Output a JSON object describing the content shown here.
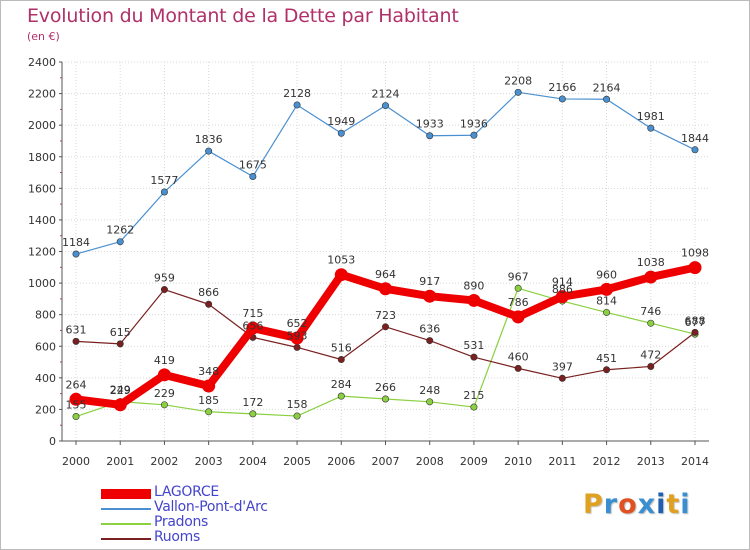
{
  "header": {
    "title": "Evolution du Montant de la Dette par Habitant",
    "subtitle": "(en €)"
  },
  "logo": {
    "letters": [
      "P",
      "r",
      "o",
      "x",
      "i",
      "t",
      "i"
    ],
    "colors": [
      "#e0a020",
      "#3a8fd0",
      "#e05020",
      "#3a8fd0",
      "#2060b0",
      "#e0a020",
      "#3a8fd0"
    ]
  },
  "chart_data": {
    "type": "line",
    "title": "Evolution du Montant de la Dette par Habitant",
    "subtitle": "(en €)",
    "xlabel": "",
    "ylabel": "",
    "ylim": [
      0,
      2400
    ],
    "grid": true,
    "legend_position": "bottom-left",
    "categories": [
      "2000",
      "2001",
      "2002",
      "2003",
      "2004",
      "2005",
      "2006",
      "2007",
      "2008",
      "2009",
      "2010",
      "2011",
      "2012",
      "2013",
      "2014"
    ],
    "y_ticks": [
      0,
      200,
      400,
      600,
      800,
      1000,
      1200,
      1400,
      1600,
      1800,
      2000,
      2200,
      2400
    ],
    "series": [
      {
        "name": "LAGORCE",
        "color": "#ee0000",
        "values": [
          264,
          229,
          419,
          348,
          715,
          652,
          1053,
          964,
          917,
          890,
          786,
          914,
          960,
          1038,
          1098
        ],
        "labels": [
          "264",
          "229",
          "419",
          "348",
          "715",
          "652",
          "1053",
          "964",
          "917",
          "890",
          "786",
          "914",
          "960",
          "1038",
          "1098"
        ]
      },
      {
        "name": "Vallon-Pont-d'Arc",
        "color": "#4a90d0",
        "values": [
          1184,
          1262,
          1577,
          1836,
          1675,
          2128,
          1949,
          2124,
          1933,
          1936,
          2208,
          2166,
          2164,
          1981,
          1844
        ],
        "labels": [
          "1184",
          "1262",
          "1577",
          "1836",
          "1675",
          "2128",
          "1949",
          "2124",
          "1933",
          "1936",
          "2208",
          "2166",
          "2164",
          "1981",
          "1844"
        ]
      },
      {
        "name": "Pradons",
        "color": "#8ad040",
        "values": [
          155,
          249,
          229,
          185,
          172,
          158,
          284,
          266,
          248,
          215,
          967,
          886,
          814,
          746,
          677
        ],
        "labels": [
          "155",
          "249",
          "229",
          "185",
          "172",
          "158",
          "284",
          "266",
          "248",
          "215",
          "967",
          "886",
          "814",
          "746",
          "677"
        ]
      },
      {
        "name": "Ruoms",
        "color": "#7a2020",
        "values": [
          631,
          615,
          959,
          866,
          656,
          593,
          516,
          723,
          636,
          531,
          460,
          397,
          451,
          472,
          688
        ],
        "labels": [
          "631",
          "615",
          "959",
          "866",
          "656",
          "593",
          "516",
          "723",
          "636",
          "531",
          "460",
          "397",
          "451",
          "472",
          "688"
        ]
      }
    ]
  }
}
